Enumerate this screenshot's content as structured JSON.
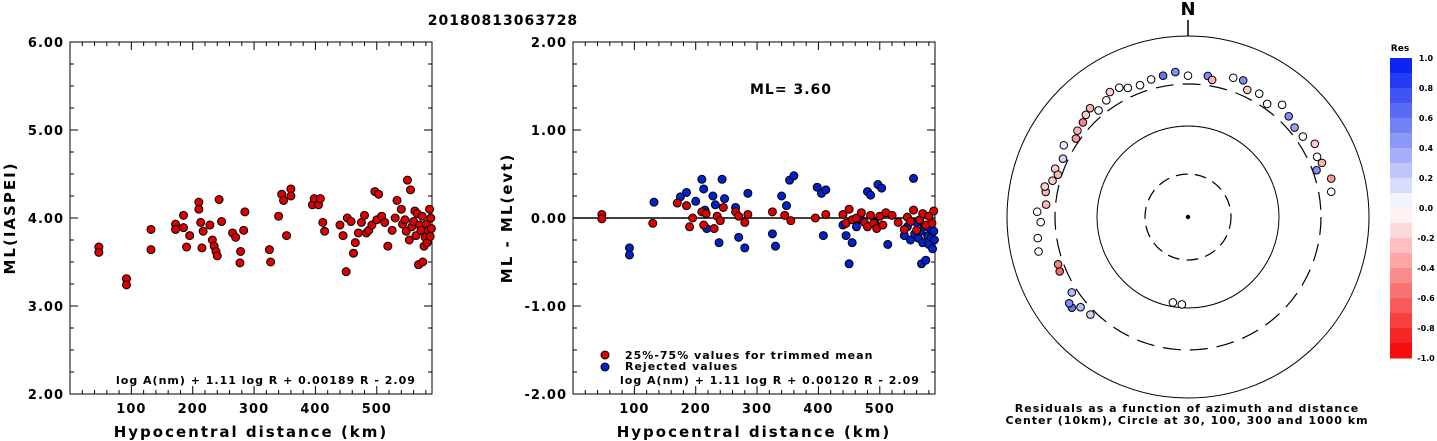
{
  "title": "20180813063728",
  "colors": {
    "accepted": "#dd0000",
    "rejected": "#0022cc",
    "stroke": "#000000"
  },
  "left_panel": {
    "ylabel": "ML(IASPEI)",
    "xlabel": "Hypocentral distance (km)",
    "formula": "log A(nm) + 1.11 log R + 0.00189 R - 2.09",
    "y_ticks": [
      "6.00",
      "5.00",
      "4.00",
      "3.00",
      "2.00"
    ],
    "x_ticks": [
      "100",
      "200",
      "300",
      "400",
      "500"
    ]
  },
  "middle_panel": {
    "ylabel": "ML - ML(evt)",
    "xlabel": "Hypocentral distance (km)",
    "annotation": "ML=  3.60",
    "formula": "log A(nm) + 1.11 log R + 0.00120 R - 2.09",
    "legend": [
      "25%-75% values for trimmed mean",
      "Rejected values"
    ],
    "y_ticks": [
      "2.00",
      "1.00",
      "0.00",
      "-1.00",
      "-2.00"
    ],
    "x_ticks": [
      "100",
      "200",
      "300",
      "400",
      "500"
    ]
  },
  "polar_panel": {
    "north_label": "N",
    "caption_line1": "Residuals as a function of azimuth and distance",
    "caption_line2": "Center (10km), Circle at 30, 100, 300 and 1000 km",
    "colorbar_title": "Res",
    "colorbar_ticks": [
      "1.0",
      "0.8",
      "0.6",
      "0.4",
      "0.2",
      "0.0",
      "-0.2",
      "-0.4",
      "-0.6",
      "-0.8",
      "-1.0"
    ]
  },
  "chart_data": [
    {
      "type": "scatter",
      "title": "20180813063728",
      "xlabel": "Hypocentral distance (km)",
      "ylabel": "ML(IASPEI)",
      "xlim": [
        0,
        590
      ],
      "ylim": [
        2.0,
        6.0
      ],
      "series": [
        {
          "name": "25%-75% values for trimmed mean",
          "points": [
            [
              47,
              3.67
            ],
            [
              47,
              3.61
            ],
            [
              92,
              3.31
            ],
            [
              92,
              3.24
            ],
            [
              132,
              3.87
            ],
            [
              132,
              3.64
            ],
            [
              172,
              3.93
            ],
            [
              172,
              3.87
            ],
            [
              185,
              4.03
            ],
            [
              185,
              3.89
            ],
            [
              190,
              3.67
            ],
            [
              195,
              3.8
            ],
            [
              210,
              4.18
            ],
            [
              210,
              4.1
            ],
            [
              213,
              3.95
            ],
            [
              215,
              3.66
            ],
            [
              217,
              3.85
            ],
            [
              228,
              3.92
            ],
            [
              232,
              3.75
            ],
            [
              235,
              3.68
            ],
            [
              238,
              3.62
            ],
            [
              240,
              3.57
            ],
            [
              243,
              4.21
            ],
            [
              247,
              3.96
            ],
            [
              265,
              3.83
            ],
            [
              270,
              3.78
            ],
            [
              277,
              3.49
            ],
            [
              278,
              3.62
            ],
            [
              283,
              3.86
            ],
            [
              285,
              4.07
            ],
            [
              325,
              3.64
            ],
            [
              327,
              3.5
            ],
            [
              340,
              4.02
            ],
            [
              345,
              4.27
            ],
            [
              348,
              4.2
            ],
            [
              353,
              3.8
            ],
            [
              360,
              4.33
            ],
            [
              360,
              4.25
            ],
            [
              395,
              4.15
            ],
            [
              398,
              4.22
            ],
            [
              405,
              4.15
            ],
            [
              408,
              4.22
            ],
            [
              412,
              3.95
            ],
            [
              415,
              3.85
            ],
            [
              440,
              3.92
            ],
            [
              445,
              3.8
            ],
            [
              450,
              3.39
            ],
            [
              452,
              4.0
            ],
            [
              458,
              3.96
            ],
            [
              462,
              3.6
            ],
            [
              465,
              3.72
            ],
            [
              470,
              3.83
            ],
            [
              475,
              3.95
            ],
            [
              480,
              4.03
            ],
            [
              483,
              3.83
            ],
            [
              487,
              3.86
            ],
            [
              492,
              3.92
            ],
            [
              497,
              4.3
            ],
            [
              500,
              3.98
            ],
            [
              503,
              4.27
            ],
            [
              508,
              4.02
            ],
            [
              513,
              3.95
            ],
            [
              518,
              3.68
            ],
            [
              525,
              3.86
            ],
            [
              530,
              4.0
            ],
            [
              533,
              4.2
            ],
            [
              540,
              4.1
            ],
            [
              542,
              3.93
            ],
            [
              546,
              3.98
            ],
            [
              548,
              3.85
            ],
            [
              550,
              4.43
            ],
            [
              553,
              3.75
            ],
            [
              555,
              4.32
            ],
            [
              557,
              3.9
            ],
            [
              560,
              3.96
            ],
            [
              562,
              4.08
            ],
            [
              564,
              3.8
            ],
            [
              566,
              4.05
            ],
            [
              568,
              3.47
            ],
            [
              570,
              3.92
            ],
            [
              572,
              3.86
            ],
            [
              574,
              4.02
            ],
            [
              575,
              3.5
            ],
            [
              577,
              3.68
            ],
            [
              579,
              3.78
            ],
            [
              581,
              3.93
            ],
            [
              582,
              3.72
            ],
            [
              584,
              3.86
            ],
            [
              586,
              4.1
            ],
            [
              587,
              3.79
            ],
            [
              588,
              4.0
            ],
            [
              589,
              3.88
            ]
          ]
        }
      ]
    },
    {
      "type": "scatter",
      "xlabel": "Hypocentral distance (km)",
      "ylabel": "ML - ML(evt)",
      "xlim": [
        0,
        590
      ],
      "ylim": [
        -2.0,
        2.0
      ],
      "reference_line": 0.0,
      "series": [
        {
          "name": "25%-75% values for trimmed mean",
          "points": [
            [
              47,
              0.04
            ],
            [
              47,
              -0.01
            ],
            [
              130,
              -0.06
            ],
            [
              170,
              0.17
            ],
            [
              185,
              0.14
            ],
            [
              190,
              -0.1
            ],
            [
              195,
              0.0
            ],
            [
              210,
              0.07
            ],
            [
              213,
              -0.08
            ],
            [
              217,
              0.05
            ],
            [
              230,
              -0.12
            ],
            [
              235,
              0.02
            ],
            [
              240,
              -0.03
            ],
            [
              245,
              0.12
            ],
            [
              265,
              0.07
            ],
            [
              270,
              0.02
            ],
            [
              280,
              -0.05
            ],
            [
              285,
              0.04
            ],
            [
              325,
              0.07
            ],
            [
              345,
              0.03
            ],
            [
              355,
              -0.03
            ],
            [
              395,
              0.0
            ],
            [
              412,
              0.04
            ],
            [
              440,
              0.04
            ],
            [
              445,
              -0.06
            ],
            [
              450,
              0.1
            ],
            [
              455,
              -0.02
            ],
            [
              462,
              0.0
            ],
            [
              470,
              0.06
            ],
            [
              475,
              -0.05
            ],
            [
              480,
              -0.1
            ],
            [
              485,
              0.03
            ],
            [
              490,
              -0.06
            ],
            [
              495,
              -0.12
            ],
            [
              500,
              0.02
            ],
            [
              505,
              -0.08
            ],
            [
              510,
              0.06
            ],
            [
              520,
              0.03
            ],
            [
              530,
              -0.05
            ],
            [
              540,
              -0.13
            ],
            [
              545,
              0.01
            ],
            [
              550,
              -0.04
            ],
            [
              555,
              0.09
            ],
            [
              560,
              -0.14
            ],
            [
              565,
              -0.02
            ],
            [
              570,
              0.05
            ],
            [
              575,
              -0.08
            ],
            [
              580,
              0.02
            ],
            [
              585,
              -0.06
            ],
            [
              588,
              0.08
            ]
          ]
        },
        {
          "name": "Rejected values",
          "points": [
            [
              92,
              -0.34
            ],
            [
              92,
              -0.42
            ],
            [
              132,
              0.18
            ],
            [
              175,
              0.24
            ],
            [
              185,
              0.29
            ],
            [
              200,
              0.19
            ],
            [
              210,
              0.44
            ],
            [
              213,
              0.33
            ],
            [
              215,
              0.09
            ],
            [
              218,
              -0.12
            ],
            [
              228,
              0.25
            ],
            [
              232,
              0.15
            ],
            [
              238,
              -0.28
            ],
            [
              243,
              0.44
            ],
            [
              247,
              0.22
            ],
            [
              265,
              0.12
            ],
            [
              270,
              -0.22
            ],
            [
              280,
              -0.34
            ],
            [
              285,
              0.28
            ],
            [
              325,
              -0.18
            ],
            [
              330,
              -0.32
            ],
            [
              340,
              0.25
            ],
            [
              348,
              0.14
            ],
            [
              353,
              0.43
            ],
            [
              360,
              0.48
            ],
            [
              398,
              0.35
            ],
            [
              405,
              0.28
            ],
            [
              408,
              -0.2
            ],
            [
              412,
              0.32
            ],
            [
              440,
              -0.08
            ],
            [
              445,
              -0.2
            ],
            [
              450,
              -0.52
            ],
            [
              455,
              -0.28
            ],
            [
              462,
              -0.1
            ],
            [
              470,
              -0.02
            ],
            [
              480,
              0.3
            ],
            [
              485,
              0.26
            ],
            [
              492,
              -0.05
            ],
            [
              497,
              0.38
            ],
            [
              503,
              0.34
            ],
            [
              513,
              -0.3
            ],
            [
              540,
              -0.2
            ],
            [
              545,
              -0.1
            ],
            [
              550,
              -0.25
            ],
            [
              555,
              0.45
            ],
            [
              557,
              -0.18
            ],
            [
              560,
              -0.05
            ],
            [
              563,
              -0.23
            ],
            [
              566,
              -0.15
            ],
            [
              568,
              -0.52
            ],
            [
              570,
              -0.28
            ],
            [
              572,
              -0.1
            ],
            [
              575,
              -0.48
            ],
            [
              578,
              -0.2
            ],
            [
              580,
              -0.3
            ],
            [
              582,
              -0.12
            ],
            [
              584,
              -0.22
            ],
            [
              586,
              -0.35
            ],
            [
              588,
              -0.15
            ],
            [
              589,
              -0.25
            ]
          ]
        }
      ]
    },
    {
      "type": "scatter",
      "polar": true,
      "title": "Residuals as a function of azimuth and distance",
      "rings_km": [
        30,
        100,
        300,
        1000
      ],
      "center_km": 10,
      "color_range": [
        -1.0,
        1.0
      ],
      "points": [
        [
          -176,
          92,
          0.0
        ],
        [
          -170,
          90,
          0.0
        ],
        [
          -128,
          430,
          0.6
        ],
        [
          -126,
          425,
          0.5
        ],
        [
          -130,
          360,
          0.3
        ],
        [
          -135,
          340,
          0.2
        ],
        [
          -123,
          345,
          0.3
        ],
        [
          -113,
          352,
          -0.6
        ],
        [
          -110,
          342,
          -0.5
        ],
        [
          -103,
          500,
          0.0
        ],
        [
          -98,
          480,
          0.0
        ],
        [
          -92,
          430,
          0.0
        ],
        [
          -88,
          470,
          0.0
        ],
        [
          -85,
          380,
          -0.3
        ],
        [
          -80,
          400,
          -0.3
        ],
        [
          -78,
          420,
          -0.2
        ],
        [
          -75,
          360,
          -0.2
        ],
        [
          -70,
          370,
          -0.2
        ],
        [
          -72,
          330,
          -0.3
        ],
        [
          -65,
          340,
          0.2
        ],
        [
          -60,
          390,
          0.1
        ],
        [
          -55,
          330,
          -0.4
        ],
        [
          -52,
          360,
          -0.3
        ],
        [
          -48,
          370,
          -0.5
        ],
        [
          -45,
          400,
          -0.2
        ],
        [
          -42,
          420,
          -0.3
        ],
        [
          -40,
          350,
          0.0
        ],
        [
          -35,
          380,
          0.0
        ],
        [
          -32,
          430,
          -0.2
        ],
        [
          -28,
          420,
          0.0
        ],
        [
          -25,
          380,
          0.0
        ],
        [
          -20,
          360,
          0.0
        ],
        [
          -15,
          380,
          0.0
        ],
        [
          -10,
          390,
          0.6
        ],
        [
          -5,
          410,
          0.5
        ],
        [
          0,
          370,
          0.0
        ],
        [
          8,
          380,
          0.5
        ],
        [
          10,
          350,
          -0.3
        ],
        [
          18,
          420,
          0.0
        ],
        [
          22,
          430,
          0.5
        ],
        [
          25,
          360,
          -0.2
        ],
        [
          30,
          380,
          0.0
        ],
        [
          35,
          340,
          0.0
        ],
        [
          40,
          420,
          0.0
        ],
        [
          45,
          380,
          0.5
        ],
        [
          50,
          350,
          0.4
        ],
        [
          55,
          360,
          0.0
        ],
        [
          60,
          420,
          -0.2
        ],
        [
          65,
          380,
          0.0
        ],
        [
          68,
          400,
          -0.3
        ],
        [
          75,
          440,
          -0.4
        ],
        [
          80,
          410,
          0.0
        ],
        [
          70,
          330,
          0.5
        ]
      ]
    }
  ]
}
